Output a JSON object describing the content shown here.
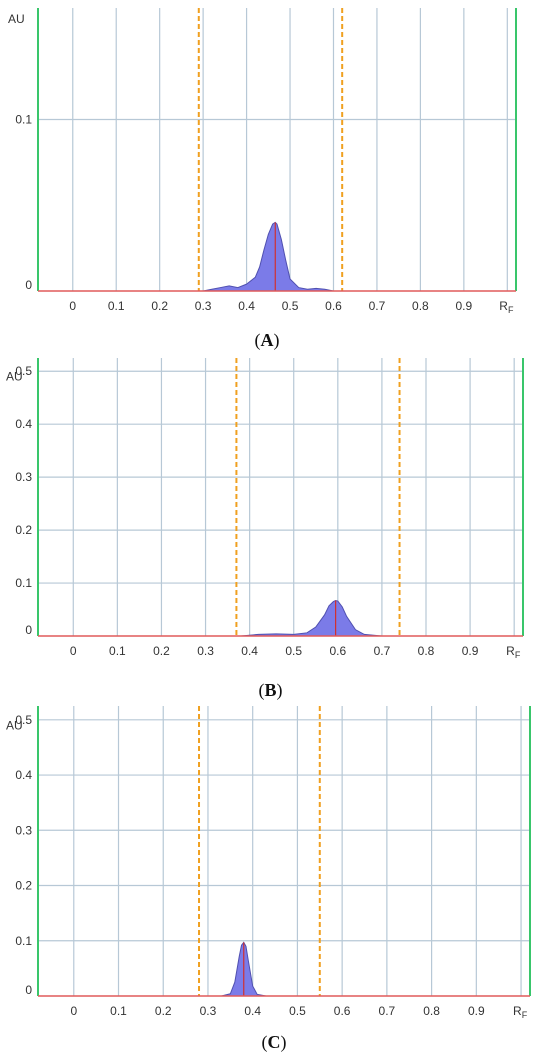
{
  "chart_data": [
    {
      "type": "area",
      "panel_label": "A",
      "y_unit_label": "AU",
      "x_unit_label": "R",
      "x_unit_sub": "F",
      "xlim": [
        -0.08,
        1.02
      ],
      "ylim": [
        0,
        0.165
      ],
      "x_ticks": [
        0,
        0.1,
        0.2,
        0.3,
        0.4,
        0.5,
        0.6,
        0.7,
        0.8,
        0.9
      ],
      "x_tick_labels": [
        "0",
        "0.1",
        "0.2",
        "0.3",
        "0.4",
        "0.5",
        "0.6",
        "0.7",
        "0.8",
        "0.9"
      ],
      "y_ticks": [
        0,
        0.1
      ],
      "y_tick_labels": [
        "0",
        "0.1"
      ],
      "grid": true,
      "markers": [
        0.29,
        0.62
      ],
      "peak_position": 0.466,
      "peak": {
        "x": [
          0.3,
          0.32,
          0.34,
          0.36,
          0.38,
          0.4,
          0.42,
          0.43,
          0.44,
          0.45,
          0.46,
          0.466,
          0.47,
          0.48,
          0.49,
          0.5,
          0.52,
          0.54,
          0.56,
          0.58,
          0.6
        ],
        "y": [
          0,
          0.001,
          0.002,
          0.003,
          0.002,
          0.004,
          0.008,
          0.014,
          0.024,
          0.033,
          0.039,
          0.04,
          0.039,
          0.03,
          0.018,
          0.007,
          0.002,
          0.001,
          0.0015,
          0.001,
          0
        ]
      }
    },
    {
      "type": "area",
      "panel_label": "B",
      "y_unit_label": "AU",
      "x_unit_label": "R",
      "x_unit_sub": "F",
      "xlim": [
        -0.08,
        1.02
      ],
      "ylim": [
        0,
        0.525
      ],
      "x_ticks": [
        0,
        0.1,
        0.2,
        0.3,
        0.4,
        0.5,
        0.6,
        0.7,
        0.8,
        0.9
      ],
      "x_tick_labels": [
        "0",
        "0.1",
        "0.2",
        "0.3",
        "0.4",
        "0.5",
        "0.6",
        "0.7",
        "0.8",
        "0.9"
      ],
      "y_ticks": [
        0,
        0.1,
        0.2,
        0.3,
        0.4,
        0.5
      ],
      "y_tick_labels": [
        "0",
        "0.1",
        "0.2",
        "0.3",
        "0.4",
        "0.5"
      ],
      "grid": true,
      "markers": [
        0.37,
        0.74
      ],
      "peak_position": 0.595,
      "peak": {
        "x": [
          0.38,
          0.42,
          0.46,
          0.5,
          0.53,
          0.55,
          0.57,
          0.58,
          0.59,
          0.595,
          0.6,
          0.61,
          0.62,
          0.64,
          0.66,
          0.7
        ],
        "y": [
          0,
          0.003,
          0.004,
          0.003,
          0.006,
          0.017,
          0.04,
          0.057,
          0.065,
          0.067,
          0.066,
          0.055,
          0.037,
          0.012,
          0.003,
          0
        ]
      }
    },
    {
      "type": "area",
      "panel_label": "C",
      "y_unit_label": "AU",
      "x_unit_label": "R",
      "x_unit_sub": "F",
      "xlim": [
        -0.08,
        1.02
      ],
      "ylim": [
        0,
        0.525
      ],
      "x_ticks": [
        0,
        0.1,
        0.2,
        0.3,
        0.4,
        0.5,
        0.6,
        0.7,
        0.8,
        0.9
      ],
      "x_tick_labels": [
        "0",
        "0.1",
        "0.2",
        "0.3",
        "0.4",
        "0.5",
        "0.6",
        "0.7",
        "0.8",
        "0.9"
      ],
      "y_ticks": [
        0,
        0.1,
        0.2,
        0.3,
        0.4,
        0.5
      ],
      "y_tick_labels": [
        "0",
        "0.1",
        "0.2",
        "0.3",
        "0.4",
        "0.5"
      ],
      "grid": true,
      "markers": [
        0.28,
        0.55
      ],
      "peak_position": 0.38,
      "peak": {
        "x": [
          0.33,
          0.35,
          0.36,
          0.37,
          0.375,
          0.38,
          0.385,
          0.39,
          0.4,
          0.41,
          0.43
        ],
        "y": [
          0,
          0.004,
          0.025,
          0.072,
          0.092,
          0.097,
          0.09,
          0.065,
          0.018,
          0.003,
          0
        ]
      }
    }
  ],
  "colors": {
    "grid": "#b7c8d6",
    "y_axis": "#39c66b",
    "right_border": "#39c66b",
    "baseline": "#e05a5a",
    "marker": "#f0a020",
    "fill": "#7b7be8",
    "outline": "#5050b0",
    "peak_line": "#d03030"
  }
}
